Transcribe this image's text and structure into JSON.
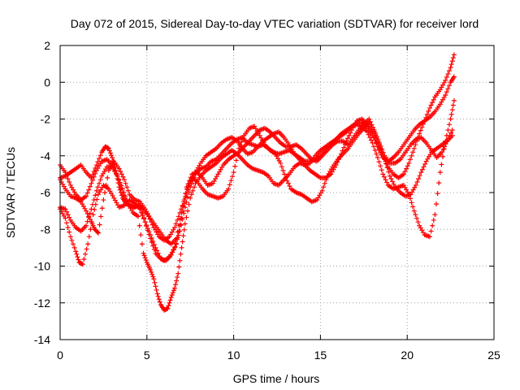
{
  "chart_data": {
    "type": "scatter",
    "title": "Day 072 of 2015, Sidereal Day-to-day VTEC variation (SDTVAR) for receiver lord",
    "xlabel": "GPS time / hours",
    "ylabel": "SDTVAR / TECUs",
    "xlim": [
      0,
      25
    ],
    "ylim": [
      -14,
      2
    ],
    "x_ticks": [
      "0",
      "5",
      "10",
      "15",
      "20",
      "25"
    ],
    "y_ticks": [
      "2",
      "0",
      "-2",
      "-4",
      "-6",
      "-8",
      "-10",
      "-12",
      "-14"
    ],
    "x_tick_values": [
      0,
      5,
      10,
      15,
      20,
      25
    ],
    "y_tick_values": [
      2,
      0,
      -2,
      -4,
      -6,
      -8,
      -10,
      -12,
      -14
    ],
    "grid": true,
    "legend": "none",
    "marker": "plus",
    "color": "#ff0000",
    "series": [
      {
        "x": [
          0.0,
          0.3,
          0.6,
          0.9,
          1.2,
          1.5,
          1.8,
          2.1,
          2.4,
          2.6,
          2.8,
          3.0,
          3.2,
          3.4,
          3.6,
          3.8,
          4.0,
          4.3,
          4.6,
          4.9,
          5.2,
          5.5,
          5.8,
          6.0,
          6.3,
          6.6,
          6.9,
          7.2,
          7.5,
          7.8,
          8.1,
          8.4,
          8.7,
          9.0,
          9.3,
          9.6,
          9.9,
          10.2,
          10.5,
          10.8,
          11.1,
          11.4,
          11.7,
          12.0,
          12.3,
          12.6,
          12.9,
          13.2,
          13.5,
          13.8,
          14.1,
          14.4,
          14.7,
          15.0,
          15.3,
          15.6,
          15.9,
          16.2,
          16.5,
          16.8,
          17.1,
          17.4,
          17.7,
          18.0,
          18.3,
          18.6,
          18.9,
          19.2,
          19.5,
          19.8,
          20.1,
          20.4,
          20.7,
          21.0,
          21.3,
          21.6,
          21.9,
          22.2,
          22.5,
          22.7
        ],
        "y": [
          -5.2,
          -5.1,
          -4.9,
          -4.7,
          -4.5,
          -4.9,
          -5.2,
          -4.5,
          -3.8,
          -3.5,
          -3.6,
          -4.1,
          -4.8,
          -5.7,
          -6.3,
          -6.6,
          -6.7,
          -6.8,
          -6.7,
          -7.6,
          -8.3,
          -9.0,
          -9.6,
          -9.7,
          -9.5,
          -9.0,
          -8.1,
          -6.8,
          -5.7,
          -5.0,
          -4.7,
          -4.6,
          -4.3,
          -4.2,
          -3.9,
          -3.6,
          -3.3,
          -3.1,
          -3.0,
          -3.3,
          -3.4,
          -3.5,
          -3.4,
          -3.6,
          -3.8,
          -3.9,
          -3.8,
          -3.7,
          -3.9,
          -4.1,
          -4.3,
          -4.3,
          -4.2,
          -4.0,
          -3.6,
          -3.4,
          -3.1,
          -2.8,
          -2.6,
          -2.4,
          -2.3,
          -2.4,
          -2.7,
          -3.3,
          -4.1,
          -5.0,
          -5.6,
          -5.8,
          -5.7,
          -5.6,
          -6.1,
          -7.0,
          -7.8,
          -8.3,
          -8.4,
          -7.2,
          -4.9,
          -3.2,
          -2.0,
          -1.0
        ]
      },
      {
        "x": [
          0.0,
          0.3,
          0.6,
          0.9,
          1.2,
          1.5,
          1.8,
          2.1,
          2.4,
          2.7,
          3.0,
          3.3,
          3.6,
          3.9,
          4.2,
          4.5,
          4.8,
          5.0,
          5.2,
          5.4,
          5.6,
          5.8,
          6.0,
          6.2,
          6.4,
          6.6,
          6.8,
          7.0,
          7.2,
          7.5,
          7.8,
          8.1,
          8.4,
          8.7,
          9.0,
          9.3,
          9.6,
          9.9,
          10.2,
          10.5,
          10.8,
          11.1,
          11.4,
          11.7,
          12.0,
          12.3,
          12.6,
          12.9,
          13.2,
          13.5,
          13.8,
          14.1,
          14.4,
          14.7,
          15.0,
          15.3,
          15.6,
          15.9,
          16.2,
          16.5,
          16.8,
          17.1,
          17.4,
          17.7,
          18.0,
          18.3,
          18.6,
          18.9,
          19.2,
          19.5,
          19.8,
          20.1,
          20.4,
          20.7,
          21.0,
          21.3,
          21.6,
          21.9,
          22.2,
          22.5,
          22.7
        ],
        "y": [
          -6.8,
          -6.9,
          -7.5,
          -7.9,
          -8.1,
          -7.8,
          -6.9,
          -5.9,
          -5.1,
          -4.6,
          -4.6,
          -5.1,
          -5.8,
          -6.6,
          -7.1,
          -7.3,
          -9.3,
          -9.8,
          -10.2,
          -10.7,
          -11.5,
          -12.1,
          -12.4,
          -12.3,
          -11.7,
          -11.2,
          -10.4,
          -9.0,
          -7.7,
          -6.3,
          -5.5,
          -5.1,
          -4.8,
          -4.6,
          -4.4,
          -4.1,
          -3.9,
          -3.7,
          -3.9,
          -4.2,
          -4.5,
          -4.7,
          -4.8,
          -4.9,
          -5.1,
          -5.5,
          -5.6,
          -5.3,
          -5.0,
          -4.6,
          -4.4,
          -4.5,
          -4.8,
          -5.0,
          -5.2,
          -5.2,
          -5.0,
          -4.5,
          -3.9,
          -3.2,
          -2.6,
          -2.1,
          -2.0,
          -2.3,
          -2.8,
          -3.5,
          -4.1,
          -4.3,
          -4.1,
          -3.8,
          -3.4,
          -3.0,
          -2.6,
          -2.3,
          -2.1,
          -1.9,
          -1.6,
          -1.2,
          -0.7,
          0.0,
          0.3
        ]
      },
      {
        "x": [
          0.0,
          0.3,
          0.6,
          0.9,
          1.1,
          1.3,
          1.6,
          1.9,
          2.2,
          2.5,
          2.8,
          3.1,
          3.4,
          3.7,
          4.0,
          4.3,
          4.6,
          4.9,
          5.2,
          5.5,
          5.8,
          6.1,
          6.4,
          6.7,
          7.0,
          7.3,
          7.6,
          7.9,
          8.2,
          8.5,
          8.8,
          9.1,
          9.4,
          9.7,
          10.0,
          10.3,
          10.6,
          10.9,
          11.2,
          11.5,
          11.8,
          12.1,
          12.4,
          12.7,
          13.0,
          13.3,
          13.6,
          13.9,
          14.2,
          14.5,
          14.8,
          15.1,
          15.4,
          15.7,
          16.0,
          16.3,
          16.6,
          16.9,
          17.2,
          17.5,
          17.8,
          18.1,
          18.4,
          18.7,
          19.0,
          19.3,
          19.6,
          19.9,
          20.2,
          20.5,
          20.8,
          21.1,
          21.4,
          21.7,
          22.0,
          22.3,
          22.6
        ],
        "y": [
          -6.9,
          -7.4,
          -8.4,
          -9.2,
          -9.8,
          -9.9,
          -8.8,
          -7.2,
          -6.1,
          -5.6,
          -5.8,
          -6.3,
          -6.8,
          -6.7,
          -6.4,
          -6.6,
          -6.9,
          -7.6,
          -8.5,
          -9.3,
          -9.6,
          -9.7,
          -9.4,
          -8.8,
          -7.4,
          -5.8,
          -5.2,
          -5.4,
          -5.8,
          -6.1,
          -6.2,
          -6.3,
          -6.2,
          -5.8,
          -4.9,
          -3.6,
          -2.9,
          -2.5,
          -2.4,
          -2.9,
          -3.4,
          -3.7,
          -3.9,
          -4.4,
          -5.2,
          -5.8,
          -6.0,
          -6.1,
          -6.3,
          -6.5,
          -6.4,
          -5.9,
          -5.1,
          -4.6,
          -4.2,
          -3.9,
          -3.6,
          -3.2,
          -2.8,
          -2.5,
          -2.2,
          -2.7,
          -3.4,
          -4.2,
          -5.1,
          -5.7,
          -6.0,
          -6.2,
          -6.1,
          -5.6,
          -4.9,
          -4.3,
          -3.8,
          -3.6,
          -3.4,
          -3.2,
          -2.9
        ]
      },
      {
        "x": [
          0.0,
          0.3,
          0.6,
          0.9,
          1.2,
          1.5,
          1.8,
          2.0,
          2.2,
          2.5,
          2.8,
          3.1,
          3.4,
          3.7,
          4.0,
          4.3,
          4.6,
          4.9,
          5.2,
          5.5,
          5.8,
          6.1,
          6.4,
          6.7,
          7.0,
          7.3,
          7.6,
          7.9,
          8.2,
          8.5,
          8.8,
          9.1,
          9.4,
          9.7,
          10.0,
          10.3,
          10.6,
          10.9,
          11.2,
          11.5,
          11.8,
          12.1,
          12.4,
          12.7,
          13.0,
          13.3,
          13.6,
          13.9,
          14.2,
          14.5,
          14.8,
          15.1,
          15.4,
          15.7,
          16.0,
          16.3,
          16.6,
          16.9,
          17.2,
          17.5,
          17.8,
          18.1,
          18.4,
          18.7,
          19.0,
          19.3,
          19.6,
          19.9,
          20.2,
          20.5,
          20.8,
          21.1,
          21.4,
          21.7,
          22.0,
          22.3,
          22.6
        ],
        "y": [
          -5.3,
          -5.8,
          -6.2,
          -6.3,
          -6.5,
          -7.0,
          -7.6,
          -8.0,
          -8.2,
          -6.4,
          -4.8,
          -4.3,
          -4.7,
          -5.3,
          -6.1,
          -6.4,
          -6.5,
          -6.9,
          -7.4,
          -7.8,
          -8.2,
          -8.6,
          -8.8,
          -8.5,
          -7.1,
          -5.7,
          -5.0,
          -4.9,
          -5.2,
          -5.6,
          -5.5,
          -5.0,
          -4.5,
          -4.2,
          -4.0,
          -3.8,
          -3.5,
          -3.2,
          -2.9,
          -2.6,
          -2.5,
          -2.7,
          -3.0,
          -3.3,
          -3.5,
          -3.5,
          -3.4,
          -3.6,
          -3.9,
          -4.2,
          -4.3,
          -4.0,
          -3.7,
          -3.4,
          -3.2,
          -3.2,
          -3.4,
          -3.0,
          -2.6,
          -2.3,
          -2.0,
          -2.6,
          -3.3,
          -4.0,
          -4.4,
          -4.4,
          -4.2,
          -3.8,
          -3.4,
          -3.1,
          -3.0,
          -3.3,
          -3.7,
          -4.1,
          -3.8,
          -3.2,
          -2.6
        ]
      },
      {
        "x": [
          0.0,
          0.3,
          0.6,
          0.9,
          1.2,
          1.5,
          1.8,
          2.1,
          2.4,
          2.7,
          3.0,
          3.3,
          3.6,
          3.9,
          4.2,
          4.5,
          4.8,
          5.1,
          5.4,
          5.7,
          6.0,
          6.3,
          6.6,
          6.9,
          7.2,
          7.5,
          7.8,
          8.1,
          8.4,
          8.7,
          9.0,
          9.3,
          9.6,
          9.9,
          10.2,
          10.5,
          10.8,
          11.1,
          11.4,
          11.7,
          12.0,
          12.3,
          12.6,
          12.9,
          13.2,
          13.5,
          13.8,
          14.1,
          14.4,
          14.7,
          15.0,
          15.3,
          15.6,
          15.9,
          16.2,
          16.5,
          16.8,
          17.1,
          17.4,
          17.7,
          18.0,
          18.3,
          18.6,
          18.9,
          19.2,
          19.5,
          19.8,
          20.1,
          20.4,
          20.7,
          21.0,
          21.3,
          21.6,
          21.9,
          22.2,
          22.5,
          22.7
        ],
        "y": [
          -4.5,
          -4.9,
          -5.6,
          -6.1,
          -6.4,
          -6.2,
          -5.5,
          -4.8,
          -4.3,
          -4.2,
          -4.5,
          -5.1,
          -6.0,
          -6.6,
          -6.8,
          -6.7,
          -6.9,
          -7.3,
          -7.9,
          -8.4,
          -8.6,
          -8.4,
          -7.9,
          -7.1,
          -6.3,
          -5.4,
          -4.9,
          -4.4,
          -4.0,
          -3.8,
          -3.6,
          -3.3,
          -3.1,
          -3.0,
          -3.2,
          -3.6,
          -3.9,
          -3.8,
          -3.5,
          -3.2,
          -3.0,
          -2.8,
          -2.7,
          -3.0,
          -3.4,
          -3.9,
          -4.2,
          -4.5,
          -4.4,
          -4.0,
          -3.7,
          -3.5,
          -3.3,
          -3.1,
          -2.9,
          -2.7,
          -2.4,
          -2.2,
          -2.2,
          -2.4,
          -2.9,
          -3.4,
          -4.0,
          -4.6,
          -5.0,
          -5.2,
          -5.0,
          -4.4,
          -3.6,
          -2.8,
          -2.1,
          -1.4,
          -0.8,
          -0.4,
          0.1,
          0.8,
          1.5
        ]
      }
    ]
  }
}
